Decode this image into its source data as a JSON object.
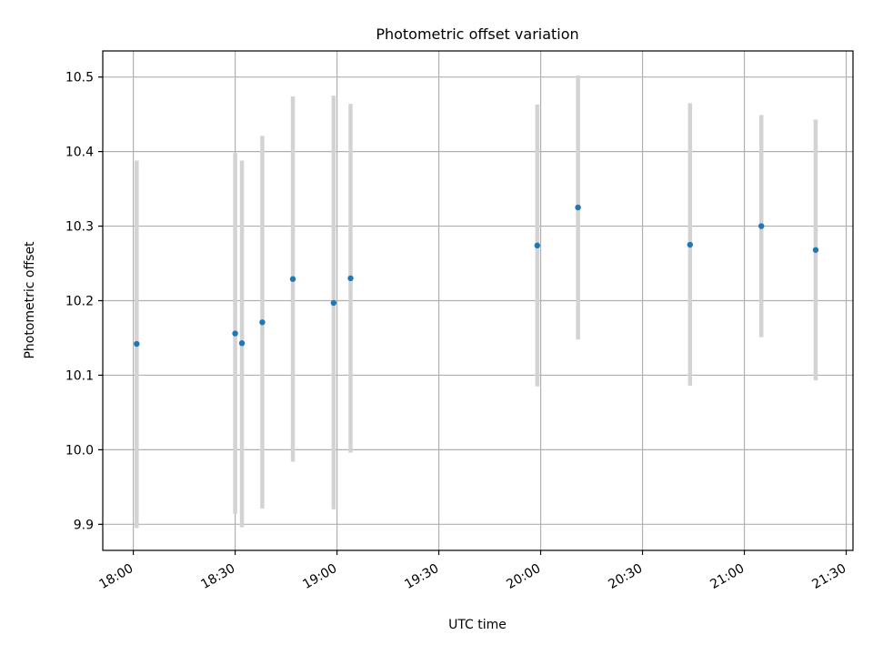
{
  "chart_data": {
    "type": "scatter",
    "title": "Photometric offset variation",
    "xlabel": "UTC time",
    "ylabel": "Photometric offset",
    "grid": true,
    "x_ticks": [
      "18:00",
      "18:30",
      "19:00",
      "19:30",
      "20:00",
      "20:30",
      "21:00",
      "21:30"
    ],
    "y_ticks": [
      "9.9",
      "10.0",
      "10.1",
      "10.2",
      "10.3",
      "10.4",
      "10.5"
    ],
    "xlim": [
      "17:51",
      "21:32"
    ],
    "ylim": [
      9.865,
      10.535
    ],
    "colors": {
      "point": "#1f77b4",
      "errorbar": "#d3d3d3"
    },
    "points": [
      {
        "time": "18:01",
        "value": 10.142,
        "low": 9.895,
        "high": 10.388
      },
      {
        "time": "18:30",
        "value": 10.156,
        "low": 9.914,
        "high": 10.398
      },
      {
        "time": "18:32",
        "value": 10.143,
        "low": 9.896,
        "high": 10.388
      },
      {
        "time": "18:38",
        "value": 10.171,
        "low": 9.921,
        "high": 10.421
      },
      {
        "time": "18:47",
        "value": 10.229,
        "low": 9.984,
        "high": 10.474
      },
      {
        "time": "18:59",
        "value": 10.197,
        "low": 9.92,
        "high": 10.475
      },
      {
        "time": "19:04",
        "value": 10.23,
        "low": 9.996,
        "high": 10.464
      },
      {
        "time": "19:59",
        "value": 10.274,
        "low": 10.085,
        "high": 10.463
      },
      {
        "time": "20:11",
        "value": 10.325,
        "low": 10.148,
        "high": 10.502
      },
      {
        "time": "20:44",
        "value": 10.275,
        "low": 10.086,
        "high": 10.465
      },
      {
        "time": "21:05",
        "value": 10.3,
        "low": 10.151,
        "high": 10.449
      },
      {
        "time": "21:21",
        "value": 10.268,
        "low": 10.093,
        "high": 10.443
      }
    ]
  }
}
